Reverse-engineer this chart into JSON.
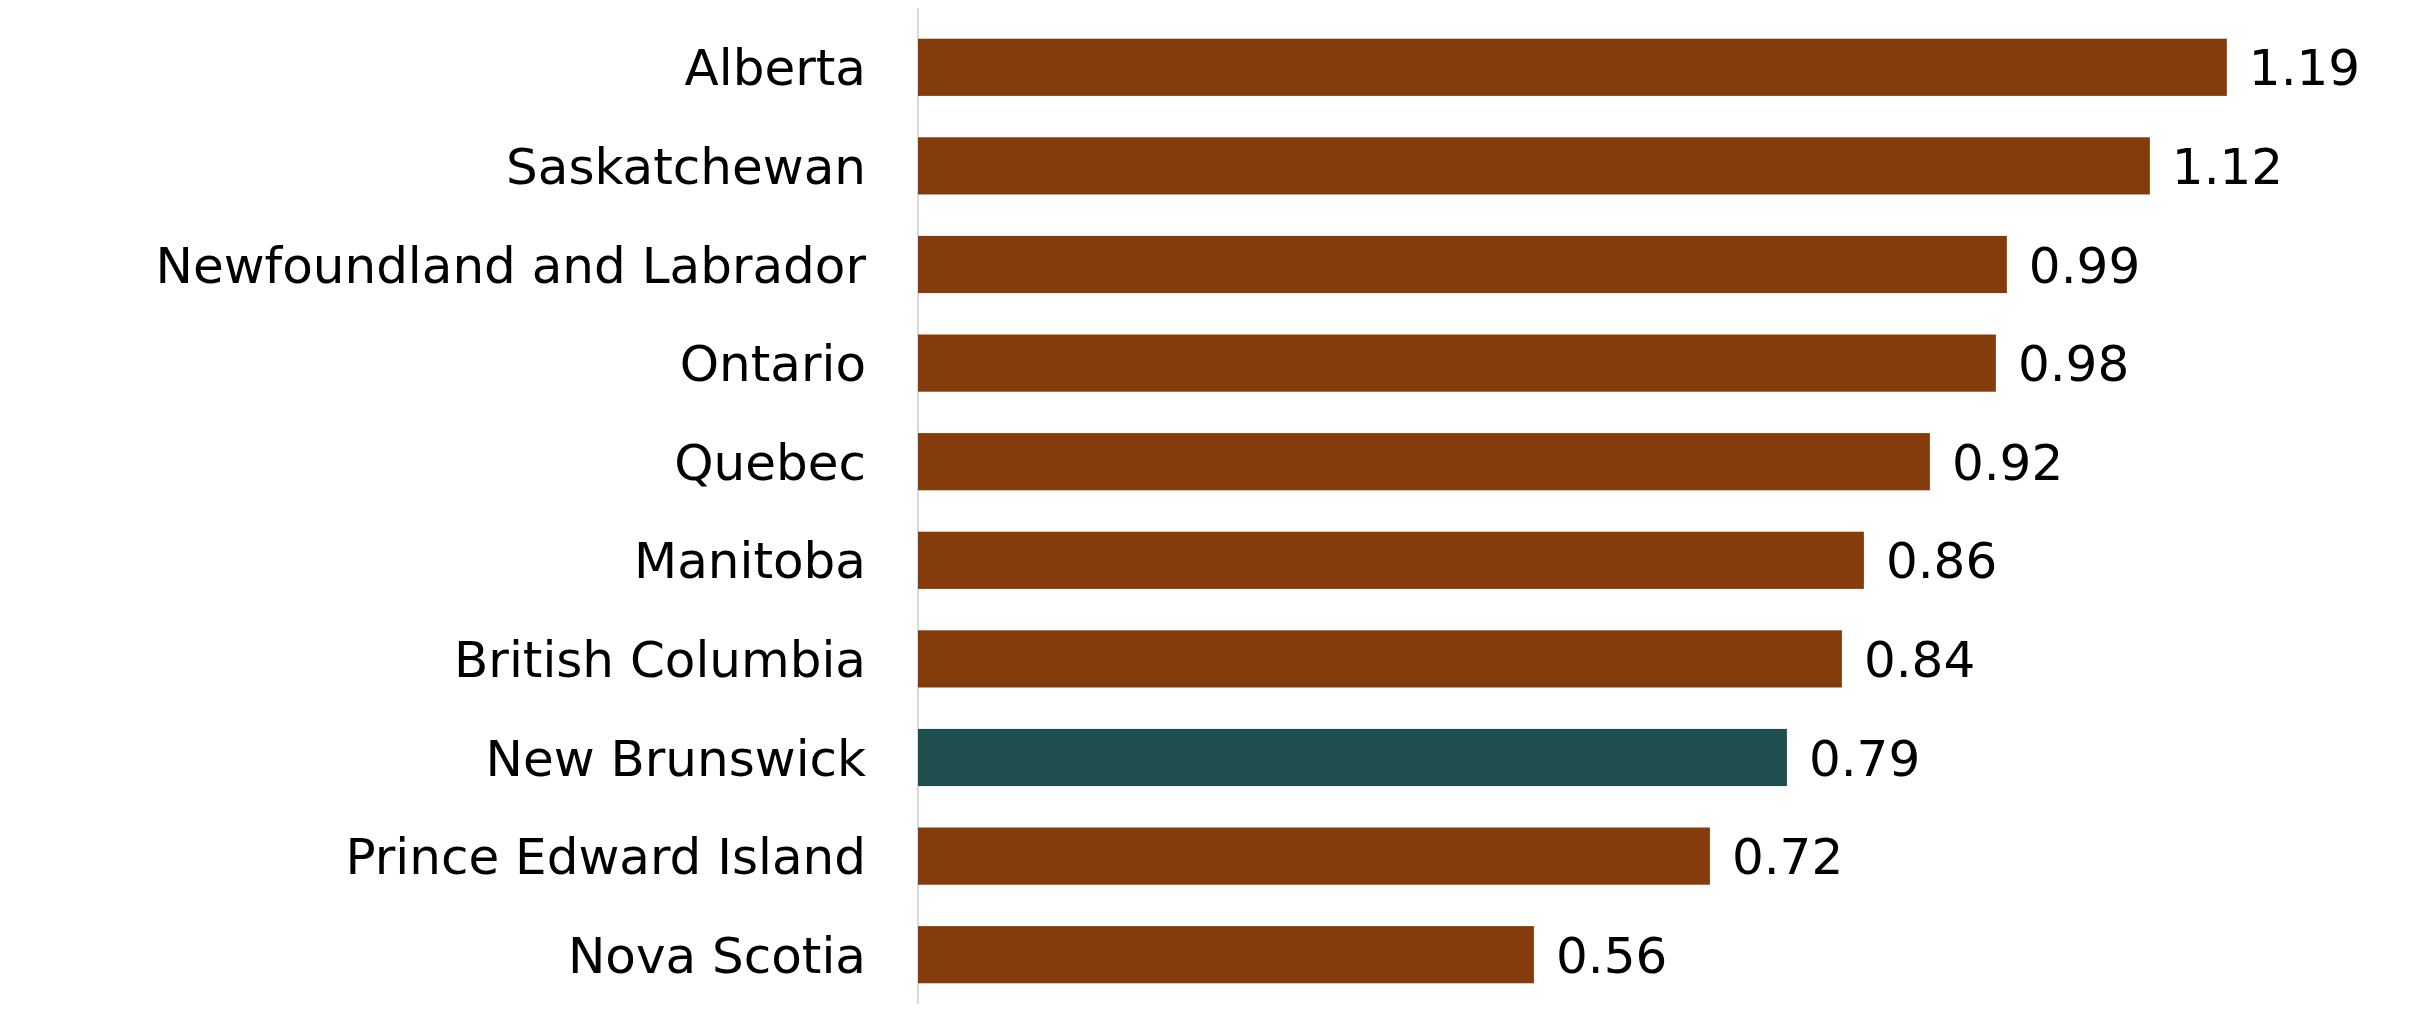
{
  "chart_data": {
    "type": "bar",
    "orientation": "horizontal",
    "categories": [
      "Alberta",
      "Saskatchewan",
      "Newfoundland and Labrador",
      "Ontario",
      "Quebec",
      "Manitoba",
      "British Columbia",
      "New Brunswick",
      "Prince Edward Island",
      "Nova Scotia"
    ],
    "values": [
      1.19,
      1.12,
      0.99,
      0.98,
      0.92,
      0.86,
      0.84,
      0.79,
      0.72,
      0.56
    ],
    "colors": [
      "#843c0c",
      "#843c0c",
      "#843c0c",
      "#843c0c",
      "#843c0c",
      "#843c0c",
      "#843c0c",
      "#1f4e4f",
      "#843c0c",
      "#843c0c"
    ],
    "data_labels": true
  }
}
